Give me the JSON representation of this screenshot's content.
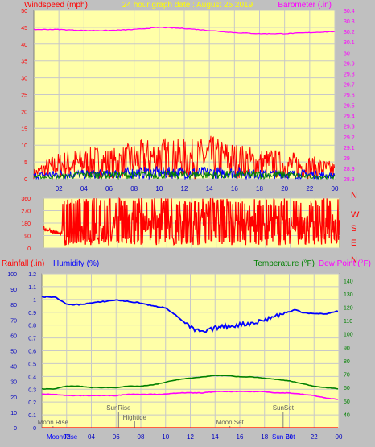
{
  "colors": {
    "background": "#c0c0c0",
    "plot_background": "#ffffa8",
    "grid": "#c8c8c8",
    "wind": "#ff0000",
    "gust_blue": "#0000ff",
    "wind_green": "#008000",
    "barometer": "#ff00ff",
    "humidity": "#0000ff",
    "temperature": "#008000",
    "dew_point": "#ff00ff",
    "rain": "#ff0000",
    "title": "#ffff00",
    "marker": "#808080"
  },
  "chart_data": [
    {
      "type": "line",
      "title": "24 hour graph date : August 25 2019",
      "left_label": "Windspeed (mph)",
      "right_label": "Barometer (.in)",
      "left_ticks": [
        "0",
        "5",
        "10",
        "15",
        "20",
        "25",
        "30",
        "35",
        "40",
        "45",
        "50"
      ],
      "right_ticks": [
        "28.8",
        "28.9",
        "29",
        "29.1",
        "29.2",
        "29.3",
        "29.4",
        "29.5",
        "29.6",
        "29.7",
        "29.8",
        "29.9",
        "30",
        "30.1",
        "30.2",
        "30.3",
        "30.4"
      ],
      "x_ticks": [
        "02",
        "04",
        "06",
        "08",
        "10",
        "12",
        "14",
        "16",
        "18",
        "20",
        "22",
        "00"
      ],
      "ylim_left": [
        0,
        50
      ],
      "ylim_right": [
        28.8,
        30.4
      ],
      "series": [
        {
          "hour": [
            0,
            2,
            4,
            6,
            8,
            10,
            12,
            14,
            16,
            18,
            20,
            22,
            24
          ],
          "values": [
            30.22,
            30.22,
            30.21,
            30.21,
            30.22,
            30.24,
            30.23,
            30.21,
            30.19,
            30.18,
            30.18,
            30.19,
            30.2
          ],
          "color": "#ff00ff",
          "axis": "right"
        },
        {
          "hour": [
            0,
            1,
            2,
            3,
            4,
            5,
            6,
            7,
            8,
            9,
            10,
            11,
            12,
            13,
            14,
            15,
            16,
            17,
            18,
            19,
            20,
            21,
            22,
            23,
            24
          ],
          "values": [
            3,
            6,
            8,
            9,
            9,
            10,
            9,
            10,
            11,
            12,
            13,
            12,
            12,
            12,
            13,
            12,
            11,
            10,
            9,
            9,
            8,
            8,
            7,
            6,
            5
          ],
          "color": "#ff0000",
          "axis": "left"
        },
        {
          "hour": [
            0,
            2,
            4,
            6,
            8,
            10,
            12,
            14,
            16,
            18,
            20,
            22,
            24
          ],
          "values": [
            2,
            3,
            3,
            3,
            4,
            4,
            4,
            4,
            4,
            3,
            3,
            3,
            2
          ],
          "color": "#0000ff",
          "axis": "left"
        },
        {
          "hour": [
            0,
            2,
            4,
            6,
            8,
            10,
            12,
            14,
            16,
            18,
            20,
            22,
            24
          ],
          "values": [
            1,
            1,
            2,
            2,
            2,
            2,
            2,
            2,
            2,
            2,
            2,
            1,
            1
          ],
          "color": "#008000",
          "axis": "left"
        }
      ]
    },
    {
      "type": "line",
      "left_ticks": [
        "0",
        "90",
        "180",
        "270",
        "360"
      ],
      "right_ticks": [
        "N",
        "W",
        "S",
        "E",
        "N"
      ],
      "ylim": [
        0,
        360
      ],
      "series": [
        {
          "hour": [
            0,
            0.5,
            1,
            1.5,
            2,
            3,
            4,
            5,
            6,
            7,
            8,
            9,
            10,
            11,
            12,
            13,
            14,
            15,
            16,
            17,
            18,
            19,
            20,
            21,
            22,
            23,
            24
          ],
          "values": [
            140,
            130,
            110,
            100,
            95,
            100,
            110,
            150,
            180,
            200,
            190,
            210,
            200,
            190,
            210,
            200,
            190,
            180,
            200,
            190,
            170,
            160,
            150,
            160,
            170,
            180,
            170
          ],
          "color": "#ff0000"
        }
      ]
    },
    {
      "type": "line",
      "left_label_1": "Rainfall (.in)",
      "left_label_2": "Humidity (%)",
      "right_label_1": "Temperature (°F)",
      "right_label_2": "Dew Point (°F)",
      "humidity_ticks": [
        "0",
        "10",
        "20",
        "30",
        "40",
        "50",
        "60",
        "70",
        "80",
        "90",
        "100"
      ],
      "rain_ticks": [
        "0",
        "0.1",
        "0.2",
        "0.3",
        "0.4",
        "0.5",
        "0.6",
        "0.7",
        "0.8",
        "0.9",
        "1",
        "1.1",
        "1.2"
      ],
      "temp_ticks": [
        "40",
        "50",
        "60",
        "70",
        "80",
        "90",
        "100",
        "110",
        "120",
        "130",
        "140"
      ],
      "x_ticks": [
        "02",
        "04",
        "06",
        "08",
        "10",
        "12",
        "14",
        "16",
        "18",
        "20",
        "22",
        "00"
      ],
      "ylim_humidity": [
        0,
        100
      ],
      "ylim_rain": [
        0,
        1.2
      ],
      "ylim_temp": [
        30,
        145
      ],
      "series": [
        {
          "name": "Humidity (%)",
          "hour": [
            0,
            1,
            1.5,
            2,
            3,
            4,
            5,
            6,
            7,
            8,
            9,
            10,
            11,
            12,
            12.5,
            13,
            13.5,
            14,
            15,
            16,
            17,
            18,
            19,
            20,
            20.5,
            21,
            22,
            23,
            24
          ],
          "values": [
            85,
            85,
            83,
            80,
            80,
            81,
            82,
            83,
            82,
            81,
            79,
            78,
            72,
            65,
            63,
            62,
            63,
            65,
            66,
            67,
            68,
            70,
            73,
            75,
            77,
            75,
            74,
            74,
            76
          ],
          "color": "#0000ff"
        },
        {
          "name": "Temperature (°F)",
          "hour": [
            0,
            1,
            2,
            3,
            4,
            5,
            6,
            7,
            8,
            9,
            10,
            11,
            12,
            13,
            14,
            15,
            16,
            17,
            18,
            19,
            20,
            21,
            22,
            23,
            24
          ],
          "values": [
            59,
            59,
            61,
            61,
            60,
            60,
            60,
            61,
            61,
            62,
            64,
            66,
            67,
            68,
            69,
            69,
            68,
            68,
            67,
            66,
            65,
            63,
            61,
            60,
            59
          ],
          "color": "#008000"
        },
        {
          "name": "Dew Point (°F)",
          "hour": [
            0,
            1,
            2,
            3,
            4,
            5,
            6,
            7,
            8,
            9,
            10,
            11,
            12,
            13,
            14,
            15,
            16,
            17,
            18,
            19,
            20,
            21,
            22,
            23,
            24
          ],
          "values": [
            55,
            55,
            54,
            54,
            54,
            54,
            54,
            55,
            55,
            55,
            55,
            56,
            56,
            56,
            57,
            57,
            57,
            57,
            57,
            56,
            56,
            55,
            54,
            52,
            51
          ],
          "color": "#ff00ff"
        },
        {
          "name": "Rainfall (.in)",
          "hour": [
            0,
            24
          ],
          "values": [
            0,
            0
          ],
          "color": "#ff0000"
        }
      ],
      "markers": [
        {
          "label": "Moon Rise",
          "hour": 0.9,
          "row": "low"
        },
        {
          "label": "SunRise",
          "hour": 6.2,
          "row": "high"
        },
        {
          "label": "Hightide",
          "hour": 7.5,
          "row": "mid"
        },
        {
          "label": "Moon Set",
          "hour": 15.2,
          "row": "low"
        },
        {
          "label": "SunSet",
          "hour": 19.5,
          "row": "high"
        }
      ],
      "bottom_labels": [
        "Moon Rise",
        "Sun Set"
      ]
    }
  ]
}
